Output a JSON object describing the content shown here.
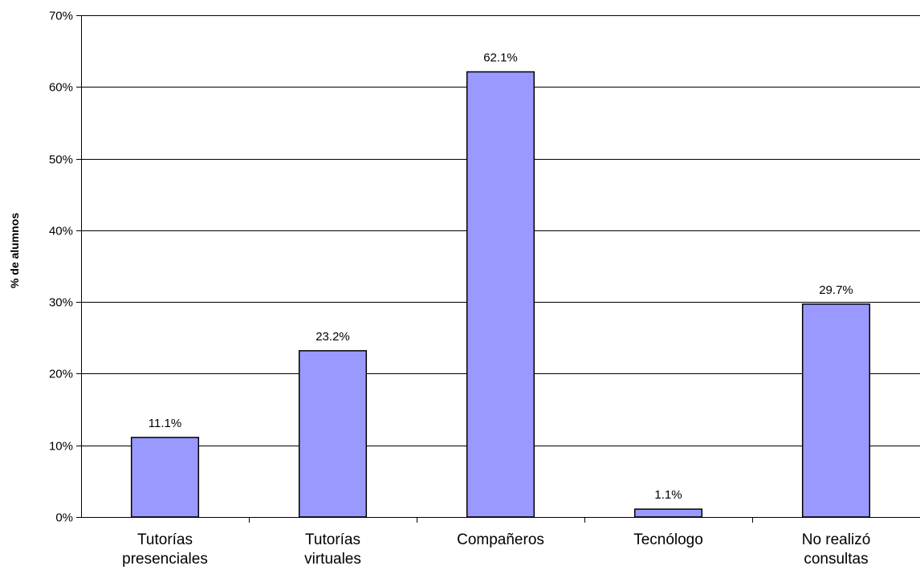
{
  "chart_data": {
    "type": "bar",
    "title": "",
    "xlabel": "",
    "ylabel": "% de alumnos",
    "ylim": [
      0,
      70
    ],
    "y_ticks": [
      "0%",
      "10%",
      "20%",
      "30%",
      "40%",
      "50%",
      "60%",
      "70%"
    ],
    "categories": [
      [
        "Tutorías",
        "presenciales"
      ],
      [
        "Tutorías",
        "virtuales"
      ],
      [
        "Compañeros"
      ],
      [
        "Tecnólogo"
      ],
      [
        "No realizó",
        "consultas"
      ]
    ],
    "values": [
      11.1,
      23.2,
      62.1,
      1.1,
      29.7
    ],
    "data_labels": [
      "11.1%",
      "23.2%",
      "62.1%",
      "1.1%",
      "29.7%"
    ],
    "grid": true,
    "legend": "none",
    "colors": {
      "bar_fill": "#9999ff",
      "bar_stroke": "#000000",
      "grid": "#000000"
    }
  }
}
